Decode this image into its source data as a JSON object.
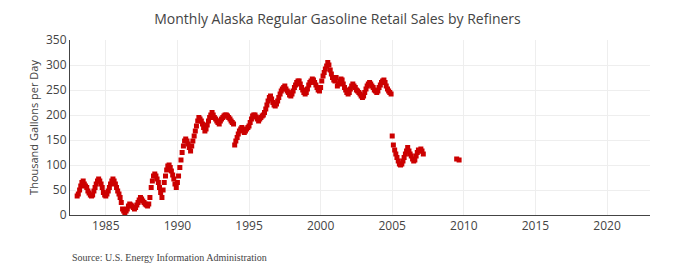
{
  "chart_data": {
    "type": "scatter",
    "title": "Monthly Alaska Regular Gasoline Retail Sales by Refiners",
    "ylabel": "Thousand Gallons per Day",
    "annotations": [
      "Source: U.S. Energy Information Administration"
    ],
    "x": [
      1983.0,
      1983.08,
      1983.17,
      1983.25,
      1983.33,
      1983.42,
      1983.5,
      1983.58,
      1983.67,
      1983.75,
      1983.83,
      1983.92,
      1984.0,
      1984.08,
      1984.17,
      1984.25,
      1984.33,
      1984.42,
      1984.5,
      1984.58,
      1984.67,
      1984.75,
      1984.83,
      1984.92,
      1985.0,
      1985.08,
      1985.17,
      1985.25,
      1985.33,
      1985.42,
      1985.5,
      1985.58,
      1985.67,
      1985.75,
      1985.83,
      1985.92,
      1986.0,
      1986.08,
      1986.17,
      1986.25,
      1986.33,
      1986.42,
      1986.5,
      1986.58,
      1986.67,
      1986.75,
      1986.83,
      1986.92,
      1987.0,
      1987.08,
      1987.17,
      1987.25,
      1987.33,
      1987.42,
      1987.5,
      1987.58,
      1987.67,
      1987.75,
      1987.83,
      1987.92,
      1988.0,
      1988.08,
      1988.17,
      1988.25,
      1988.33,
      1988.42,
      1988.5,
      1988.58,
      1988.67,
      1988.75,
      1988.83,
      1988.92,
      1989.0,
      1989.08,
      1989.17,
      1989.25,
      1989.33,
      1989.42,
      1989.5,
      1989.58,
      1989.67,
      1989.75,
      1989.83,
      1989.92,
      1990.0,
      1990.08,
      1990.17,
      1990.25,
      1990.33,
      1990.42,
      1990.5,
      1990.58,
      1990.67,
      1990.75,
      1990.83,
      1990.92,
      1991.0,
      1991.08,
      1991.17,
      1991.25,
      1991.33,
      1991.42,
      1991.5,
      1991.58,
      1991.67,
      1991.75,
      1991.83,
      1991.92,
      1992.0,
      1992.08,
      1992.17,
      1992.25,
      1992.33,
      1992.42,
      1992.5,
      1992.58,
      1992.67,
      1992.75,
      1992.83,
      1992.92,
      1993.0,
      1993.08,
      1993.17,
      1993.25,
      1993.33,
      1993.42,
      1993.5,
      1993.58,
      1993.67,
      1993.75,
      1993.83,
      1993.92,
      1994.0,
      1994.08,
      1994.17,
      1994.25,
      1994.33,
      1994.42,
      1994.5,
      1994.58,
      1994.67,
      1994.75,
      1994.83,
      1994.92,
      1995.0,
      1995.08,
      1995.17,
      1995.25,
      1995.33,
      1995.42,
      1995.5,
      1995.58,
      1995.67,
      1995.75,
      1995.83,
      1995.92,
      1996.0,
      1996.08,
      1996.17,
      1996.25,
      1996.33,
      1996.42,
      1996.5,
      1996.58,
      1996.67,
      1996.75,
      1996.83,
      1996.92,
      1997.0,
      1997.08,
      1997.17,
      1997.25,
      1997.33,
      1997.42,
      1997.5,
      1997.58,
      1997.67,
      1997.75,
      1997.83,
      1997.92,
      1998.0,
      1998.08,
      1998.17,
      1998.25,
      1998.33,
      1998.42,
      1998.5,
      1998.58,
      1998.67,
      1998.75,
      1998.83,
      1998.92,
      1999.0,
      1999.08,
      1999.17,
      1999.25,
      1999.33,
      1999.42,
      1999.5,
      1999.58,
      1999.67,
      1999.75,
      1999.83,
      1999.92,
      2000.0,
      2000.08,
      2000.17,
      2000.25,
      2000.33,
      2000.42,
      2000.5,
      2000.58,
      2000.67,
      2000.75,
      2000.83,
      2000.92,
      2001.0,
      2001.08,
      2001.17,
      2001.25,
      2001.33,
      2001.42,
      2001.5,
      2001.58,
      2001.67,
      2001.75,
      2001.83,
      2001.92,
      2002.0,
      2002.08,
      2002.17,
      2002.25,
      2002.33,
      2002.42,
      2002.5,
      2002.58,
      2002.67,
      2002.75,
      2002.83,
      2002.92,
      2003.0,
      2003.08,
      2003.17,
      2003.25,
      2003.33,
      2003.42,
      2003.5,
      2003.58,
      2003.67,
      2003.75,
      2003.83,
      2003.92,
      2004.0,
      2004.08,
      2004.17,
      2004.25,
      2004.33,
      2004.42,
      2004.5,
      2004.58,
      2004.67,
      2004.75,
      2004.83,
      2004.92,
      2005.0,
      2005.08,
      2005.17,
      2005.25,
      2005.33,
      2005.42,
      2005.5,
      2005.58,
      2005.67,
      2005.75,
      2005.83,
      2005.92,
      2006.0,
      2006.08,
      2006.17,
      2006.25,
      2006.33,
      2006.42,
      2006.5,
      2006.58,
      2006.67,
      2006.75,
      2006.83,
      2006.92,
      2007.0,
      2007.08,
      2007.17,
      2009.5,
      2009.67
    ],
    "values": [
      38,
      42,
      50,
      58,
      65,
      68,
      62,
      58,
      55,
      48,
      44,
      40,
      38,
      40,
      48,
      55,
      62,
      68,
      72,
      68,
      62,
      55,
      45,
      40,
      38,
      42,
      48,
      55,
      62,
      68,
      72,
      68,
      62,
      55,
      48,
      42,
      35,
      25,
      12,
      8,
      5,
      8,
      12,
      18,
      22,
      20,
      18,
      15,
      12,
      15,
      20,
      25,
      30,
      35,
      32,
      28,
      25,
      22,
      20,
      18,
      22,
      35,
      55,
      68,
      78,
      82,
      78,
      72,
      65,
      55,
      45,
      35,
      50,
      65,
      78,
      90,
      98,
      100,
      95,
      88,
      80,
      72,
      62,
      55,
      65,
      78,
      95,
      110,
      125,
      138,
      148,
      152,
      148,
      142,
      135,
      128,
      138,
      148,
      158,
      168,
      178,
      188,
      195,
      192,
      188,
      182,
      175,
      168,
      172,
      180,
      188,
      195,
      200,
      205,
      200,
      195,
      192,
      188,
      185,
      182,
      188,
      192,
      195,
      198,
      200,
      200,
      198,
      195,
      192,
      188,
      185,
      182,
      140,
      148,
      155,
      162,
      168,
      172,
      175,
      170,
      165,
      168,
      172,
      175,
      178,
      185,
      192,
      198,
      200,
      200,
      196,
      192,
      188,
      192,
      195,
      198,
      200,
      205,
      212,
      220,
      228,
      235,
      238,
      232,
      225,
      220,
      218,
      222,
      228,
      235,
      242,
      248,
      252,
      255,
      258,
      252,
      248,
      245,
      240,
      238,
      242,
      248,
      255,
      260,
      265,
      268,
      268,
      262,
      255,
      250,
      245,
      242,
      245,
      252,
      260,
      265,
      268,
      272,
      270,
      265,
      260,
      255,
      250,
      248,
      255,
      268,
      278,
      285,
      292,
      298,
      305,
      300,
      290,
      282,
      275,
      270,
      268,
      275,
      258,
      262,
      268,
      272,
      270,
      262,
      255,
      250,
      245,
      242,
      245,
      252,
      258,
      262,
      258,
      255,
      250,
      248,
      245,
      242,
      238,
      235,
      238,
      245,
      252,
      258,
      262,
      265,
      262,
      258,
      255,
      250,
      248,
      245,
      248,
      255,
      260,
      265,
      268,
      270,
      265,
      258,
      252,
      248,
      245,
      242,
      158,
      140,
      130,
      122,
      115,
      108,
      102,
      100,
      102,
      108,
      115,
      122,
      128,
      135,
      128,
      122,
      118,
      112,
      108,
      110,
      118,
      125,
      130,
      128,
      132,
      128,
      122,
      112,
      110
    ],
    "color": "#cc0000",
    "marker": "square",
    "xlim": [
      1982.5,
      2023
    ],
    "ylim": [
      0,
      350
    ],
    "xticks": [
      1985,
      1990,
      1995,
      2000,
      2005,
      2010,
      2015,
      2020
    ],
    "yticks": [
      0,
      50,
      100,
      150,
      200,
      250,
      300,
      350
    ],
    "grid": true
  }
}
